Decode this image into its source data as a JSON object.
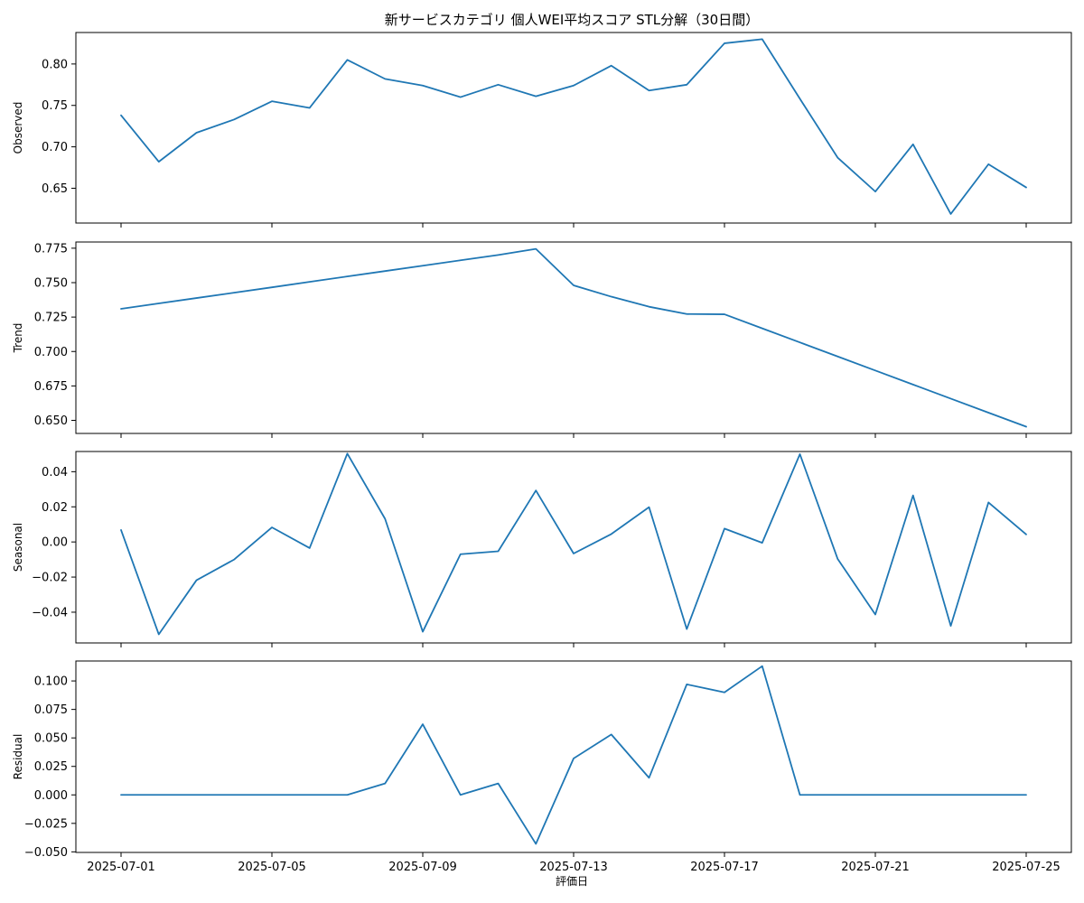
{
  "chart_data": {
    "type": "line",
    "title": "新サービスカテゴリ 個人WEI平均スコア STL分解（30日間）",
    "xlabel": "評価日",
    "line_color": "#1f77b4",
    "x": [
      "2025-07-01",
      "2025-07-02",
      "2025-07-03",
      "2025-07-04",
      "2025-07-05",
      "2025-07-06",
      "2025-07-07",
      "2025-07-08",
      "2025-07-09",
      "2025-07-10",
      "2025-07-11",
      "2025-07-12",
      "2025-07-13",
      "2025-07-14",
      "2025-07-15",
      "2025-07-16",
      "2025-07-17",
      "2025-07-18",
      "2025-07-19",
      "2025-07-20",
      "2025-07-21",
      "2025-07-22",
      "2025-07-23",
      "2025-07-24",
      "2025-07-25"
    ],
    "xticks": [
      "2025-07-01",
      "2025-07-05",
      "2025-07-09",
      "2025-07-13",
      "2025-07-17",
      "2025-07-21",
      "2025-07-25"
    ],
    "panels": [
      {
        "ylabel": "Observed",
        "ylim": [
          0.608,
          0.838
        ],
        "yticks": [
          0.65,
          0.7,
          0.75,
          0.8
        ],
        "ytick_labels": [
          "0.65",
          "0.70",
          "0.75",
          "0.80"
        ],
        "values": [
          0.738,
          0.682,
          0.717,
          0.733,
          0.755,
          0.747,
          0.805,
          0.782,
          0.774,
          0.76,
          0.775,
          0.761,
          0.774,
          0.798,
          0.768,
          0.775,
          0.825,
          0.83,
          0.758,
          0.687,
          0.646,
          0.703,
          0.619,
          0.679,
          0.651
        ]
      },
      {
        "ylabel": "Trend",
        "ylim": [
          0.6405,
          0.7795
        ],
        "yticks": [
          0.65,
          0.675,
          0.7,
          0.725,
          0.75,
          0.775
        ],
        "ytick_labels": [
          "0.650",
          "0.675",
          "0.700",
          "0.725",
          "0.750",
          "0.775"
        ],
        "values": [
          0.731,
          0.7349,
          0.7388,
          0.7427,
          0.7466,
          0.7506,
          0.7545,
          0.7584,
          0.7623,
          0.7662,
          0.7701,
          0.7745,
          0.748,
          0.7398,
          0.7325,
          0.7272,
          0.727,
          0.7168,
          0.7066,
          0.6964,
          0.6862,
          0.676,
          0.6658,
          0.6556,
          0.6454
        ]
      },
      {
        "ylabel": "Seasonal",
        "ylim": [
          -0.0575,
          0.0515
        ],
        "yticks": [
          -0.04,
          -0.02,
          0.0,
          0.02,
          0.04
        ],
        "ytick_labels": [
          "−0.04",
          "−0.02",
          "0.00",
          "0.02",
          "0.04"
        ],
        "values": [
          0.0068,
          -0.0526,
          -0.0218,
          -0.01,
          0.0083,
          -0.0035,
          0.0503,
          0.0132,
          -0.0511,
          -0.007,
          -0.0053,
          0.0293,
          -0.0066,
          0.0045,
          0.0198,
          -0.0496,
          0.0076,
          -0.0005,
          0.05,
          -0.0096,
          -0.0413,
          0.0265,
          -0.0478,
          0.0225,
          0.0043
        ]
      },
      {
        "ylabel": "Residual",
        "ylim": [
          -0.0505,
          0.1175
        ],
        "yticks": [
          -0.05,
          -0.025,
          0.0,
          0.025,
          0.05,
          0.075,
          0.1
        ],
        "ytick_labels": [
          "−0.050",
          "−0.025",
          "0.000",
          "0.025",
          "0.050",
          "0.075",
          "0.100"
        ],
        "values": [
          0,
          0,
          0,
          0,
          0,
          0,
          0,
          0.01,
          0.062,
          0,
          0.01,
          -0.043,
          0.032,
          0.053,
          0.015,
          0.097,
          0.09,
          0.113,
          0,
          0,
          0,
          0,
          0,
          0,
          0
        ]
      }
    ]
  }
}
